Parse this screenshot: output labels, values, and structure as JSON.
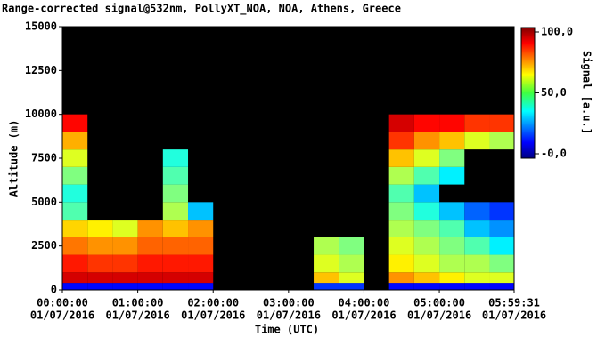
{
  "chart_data": {
    "type": "heatmap",
    "title": "Range-corrected signal@532nm, PollyXT_NOA, NOA, Athens, Greece",
    "x_label": "Time (UTC)",
    "y_label": "Altitude (m)",
    "colorbar_label": "Signal [a.u.]",
    "xlim": [
      0,
      21571
    ],
    "ylim": [
      0,
      15000
    ],
    "clim": [
      -4,
      104
    ],
    "xticks": [
      {
        "value": 0,
        "label": "00:00:00",
        "date": "01/07/2016"
      },
      {
        "value": 3600,
        "label": "01:00:00",
        "date": "01/07/2016"
      },
      {
        "value": 7200,
        "label": "02:00:00",
        "date": "01/07/2016"
      },
      {
        "value": 10800,
        "label": "03:00:00",
        "date": "01/07/2016"
      },
      {
        "value": 14400,
        "label": "04:00:00",
        "date": "01/07/2016"
      },
      {
        "value": 18000,
        "label": "05:00:00",
        "date": "01/07/2016"
      },
      {
        "value": 21571,
        "label": "05:59:31",
        "date": "01/07/2016"
      }
    ],
    "yticks": [
      0,
      2500,
      5000,
      7500,
      10000,
      12500,
      15000
    ],
    "cticks": [
      {
        "value": 0,
        "label": "-0,0"
      },
      {
        "value": 50,
        "label": "50,0"
      },
      {
        "value": 100,
        "label": "100,0"
      }
    ],
    "x_bins": [
      0,
      1200,
      2400,
      3600,
      4800,
      6000,
      7200,
      8400,
      9600,
      10800,
      12000,
      13200,
      14400,
      15600,
      16800,
      18000,
      19200,
      20400,
      21571
    ],
    "y_bins": [
      0,
      400,
      1000,
      2000,
      3000,
      4000,
      5000,
      6000,
      7000,
      8000,
      9000,
      10000,
      15000
    ],
    "values": [
      [
        10,
        95,
        88,
        78,
        68,
        45,
        40,
        50,
        60,
        72,
        90,
        null
      ],
      [
        10,
        95,
        85,
        75,
        65,
        null,
        null,
        null,
        null,
        null,
        null,
        null
      ],
      [
        10,
        95,
        85,
        75,
        60,
        null,
        null,
        null,
        null,
        null,
        null,
        null
      ],
      [
        10,
        95,
        88,
        80,
        75,
        null,
        null,
        null,
        null,
        null,
        null,
        null
      ],
      [
        10,
        95,
        88,
        80,
        70,
        55,
        50,
        45,
        40,
        null,
        null,
        null
      ],
      [
        10,
        95,
        88,
        80,
        75,
        30,
        null,
        null,
        null,
        null,
        null,
        null
      ],
      [
        null,
        null,
        null,
        null,
        null,
        null,
        null,
        null,
        null,
        null,
        null,
        null
      ],
      [
        null,
        null,
        null,
        null,
        null,
        null,
        null,
        null,
        null,
        null,
        null,
        null
      ],
      [
        null,
        null,
        null,
        null,
        null,
        null,
        null,
        null,
        null,
        null,
        null,
        null
      ],
      [
        null,
        null,
        null,
        null,
        null,
        null,
        null,
        null,
        null,
        null,
        null,
        null
      ],
      [
        15,
        70,
        60,
        55,
        null,
        null,
        null,
        null,
        null,
        null,
        null,
        null
      ],
      [
        15,
        60,
        55,
        50,
        null,
        null,
        null,
        null,
        null,
        null,
        null,
        null
      ],
      [
        null,
        null,
        null,
        null,
        null,
        null,
        null,
        null,
        null,
        null,
        null,
        null
      ],
      [
        10,
        75,
        65,
        60,
        55,
        50,
        45,
        55,
        70,
        85,
        95,
        null
      ],
      [
        10,
        70,
        60,
        55,
        50,
        40,
        30,
        45,
        60,
        75,
        90,
        null
      ],
      [
        10,
        65,
        55,
        50,
        45,
        30,
        null,
        35,
        50,
        70,
        90,
        null
      ],
      [
        10,
        60,
        55,
        45,
        30,
        20,
        null,
        null,
        null,
        60,
        85,
        null
      ],
      [
        10,
        60,
        50,
        35,
        25,
        15,
        null,
        null,
        null,
        55,
        85,
        null
      ]
    ]
  }
}
